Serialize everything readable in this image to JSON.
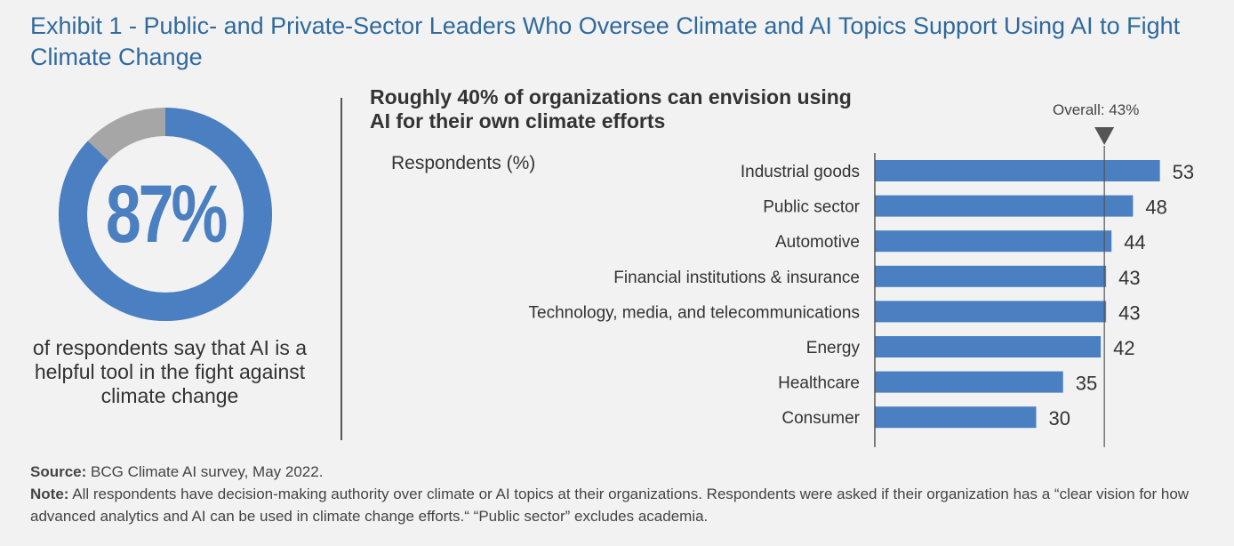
{
  "exhibit_title": "Exhibit 1 - Public- and Private-Sector Leaders Who Oversee Climate and AI Topics Support Using AI to Fight Climate Change",
  "donut": {
    "value_label": "87%",
    "value": 87,
    "caption": "of respondents say that AI is a helpful tool in the fight against climate change",
    "colors": {
      "main": "#4a7fc1",
      "rest": "#a6a6a6"
    }
  },
  "subtitle": "Roughly 40% of organizations can envision using AI for their own climate efforts",
  "chart_data": {
    "type": "bar",
    "orientation": "horizontal",
    "ylabel": "Respondents (%)",
    "categories": [
      "Industrial goods",
      "Public sector",
      "Automotive",
      "Financial institutions & insurance",
      "Technology, media, and telecommunications",
      "Energy",
      "Healthcare",
      "Consumer"
    ],
    "values": [
      53,
      48,
      44,
      43,
      43,
      42,
      35,
      30
    ],
    "data_labels": [
      "53",
      "48",
      "44",
      "43",
      "43",
      "42",
      "35",
      "30"
    ],
    "xlim": [
      0,
      55
    ],
    "reference_line": {
      "label": "Overall: 43%",
      "value": 43
    },
    "bar_color": "#4a7fc1"
  },
  "footer": {
    "source_label": "Source:",
    "source_text": "BCG Climate AI survey, May 2022.",
    "note_label": "Note:",
    "note_text": "All respondents have decision-making authority over climate or AI topics at their organizations. Respondents were asked if their organization has a “clear vision for how advanced analytics and AI can be used in climate change efforts.“  “Public sector” excludes academia."
  }
}
